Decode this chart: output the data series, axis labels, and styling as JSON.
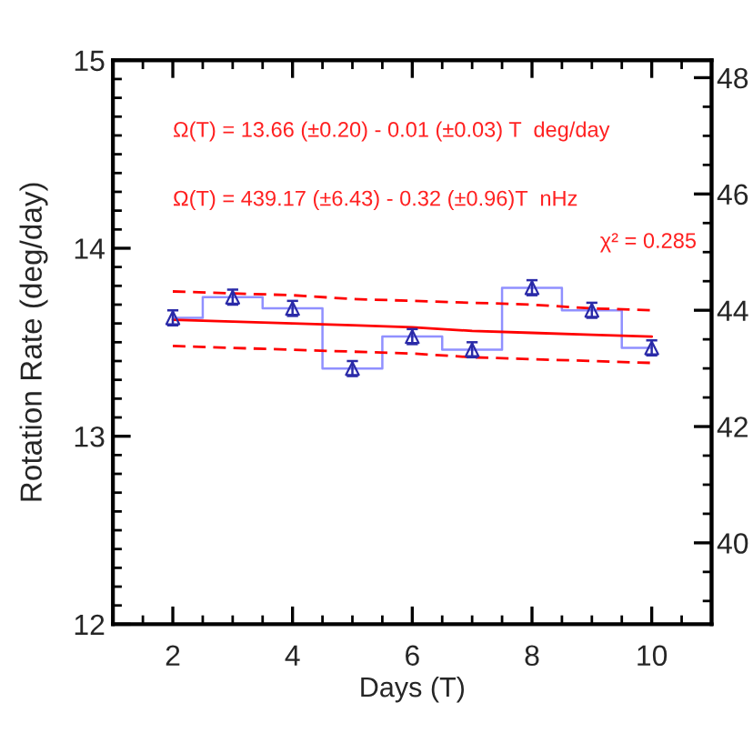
{
  "chart_data": {
    "type": "step",
    "xlabel": "Days (T)",
    "ylabel": "Rotation Rate (deg/day)",
    "annotations": [
      "Ω(T) = 13.66 (±0.20) - 0.01 (±0.03) T  deg/day",
      "Ω(T) = 439.17 (±6.43) - 0.32 (±0.96)T  nHz",
      "χ² = 0.285"
    ],
    "x": [
      2,
      3,
      4,
      5,
      6,
      7,
      8,
      9,
      10
    ],
    "xlim": [
      1,
      11
    ],
    "xticks": [
      2,
      4,
      6,
      8,
      10
    ],
    "ylim": [
      12,
      15
    ],
    "yticks": [
      12,
      13,
      14,
      15
    ],
    "y2lim": [
      38.6,
      48.3
    ],
    "y2ticks": [
      40,
      42,
      44,
      46,
      48
    ],
    "series": [
      {
        "color": "#9090ff",
        "marker": "none",
        "values": [
          13.63,
          13.74,
          13.68,
          13.36,
          13.53,
          13.46,
          13.79,
          13.67,
          13.47
        ]
      },
      {
        "type": "scatter",
        "color": "#2a2aa8",
        "marker": "triangle",
        "values": [
          13.63,
          13.74,
          13.68,
          13.36,
          13.53,
          13.46,
          13.79,
          13.67,
          13.47
        ],
        "errors": [
          0.04,
          0.04,
          0.04,
          0.04,
          0.04,
          0.04,
          0.04,
          0.04,
          0.04
        ]
      },
      {
        "type": "line",
        "color": "#ff0000",
        "line_style": "solid",
        "marker": "none",
        "values": [
          13.62,
          13.61,
          13.6,
          13.59,
          13.58,
          13.56,
          13.55,
          13.54,
          13.53
        ]
      },
      {
        "type": "line",
        "color": "#ff0000",
        "line_style": "dashed",
        "marker": "none",
        "values": [
          13.77,
          13.76,
          13.75,
          13.73,
          13.72,
          13.71,
          13.7,
          13.68,
          13.67
        ]
      },
      {
        "type": "line",
        "color": "#ff0000",
        "line_style": "dashed",
        "marker": "none",
        "values": [
          13.48,
          13.47,
          13.46,
          13.45,
          13.44,
          13.42,
          13.41,
          13.4,
          13.39
        ]
      }
    ]
  }
}
